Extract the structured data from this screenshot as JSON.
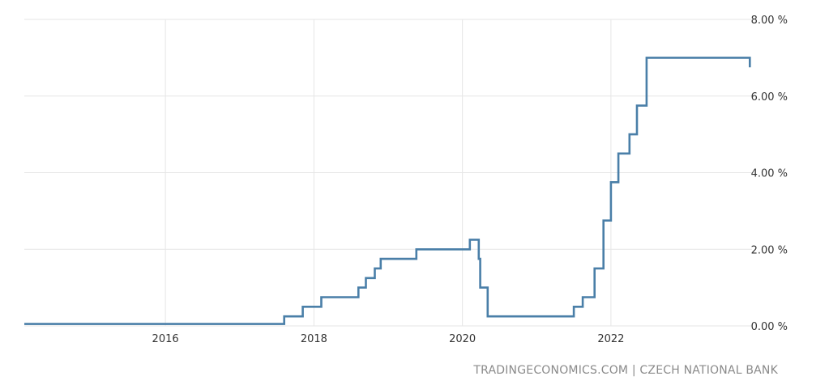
{
  "chart_data": {
    "type": "line",
    "title": "",
    "xlabel": "",
    "ylabel": "",
    "x_ticks": [
      {
        "label": "2016",
        "year": 2016.0
      },
      {
        "label": "2018",
        "year": 2018.0
      },
      {
        "label": "2020",
        "year": 2020.0
      },
      {
        "label": "2022",
        "year": 2022.0
      }
    ],
    "y_ticks": [
      {
        "label": "0.00 %",
        "value": 0
      },
      {
        "label": "2.00 %",
        "value": 2
      },
      {
        "label": "4.00 %",
        "value": 4
      },
      {
        "label": "6.00 %",
        "value": 6
      },
      {
        "label": "8.00 %",
        "value": 8
      }
    ],
    "xlim": [
      2014.1,
      2023.9
    ],
    "ylim": [
      0,
      8
    ],
    "grid": true,
    "step": true,
    "line_color": "#4a7fa8",
    "series": [
      {
        "points": [
          [
            2014.1,
            0.05
          ],
          [
            2017.6,
            0.25
          ],
          [
            2017.85,
            0.5
          ],
          [
            2018.1,
            0.75
          ],
          [
            2018.6,
            1.0
          ],
          [
            2018.7,
            1.25
          ],
          [
            2018.82,
            1.5
          ],
          [
            2018.9,
            1.75
          ],
          [
            2019.38,
            2.0
          ],
          [
            2020.1,
            2.25
          ],
          [
            2020.22,
            1.75
          ],
          [
            2020.24,
            1.0
          ],
          [
            2020.34,
            0.25
          ],
          [
            2021.5,
            0.5
          ],
          [
            2021.62,
            0.75
          ],
          [
            2021.78,
            1.5
          ],
          [
            2021.9,
            2.75
          ],
          [
            2022.0,
            3.75
          ],
          [
            2022.1,
            4.5
          ],
          [
            2022.25,
            5.0
          ],
          [
            2022.35,
            5.75
          ],
          [
            2022.48,
            7.0
          ],
          [
            2023.87,
            6.75
          ]
        ]
      }
    ]
  },
  "source": "TRADINGECONOMICS.COM | CZECH NATIONAL BANK"
}
